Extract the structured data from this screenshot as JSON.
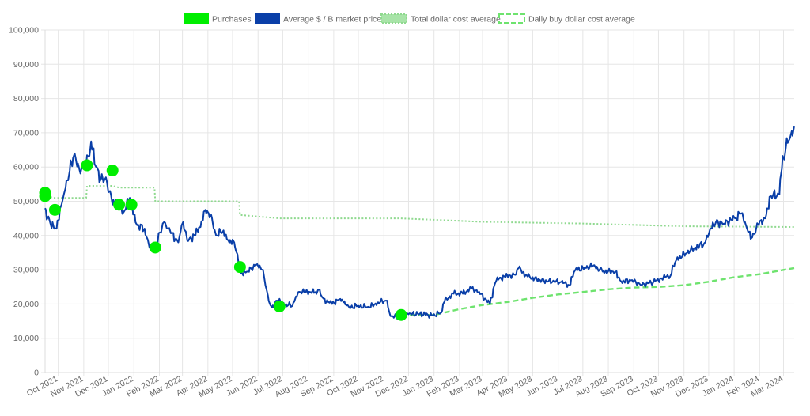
{
  "chart_data": {
    "type": "line",
    "ylim": [
      0,
      100000
    ],
    "xlim": [
      "2021-09-15",
      "2024-03-14"
    ],
    "grid": true,
    "legend_position": "top",
    "y_ticks": [
      {
        "value": 0,
        "label": "0"
      },
      {
        "value": 10000,
        "label": "10,000"
      },
      {
        "value": 20000,
        "label": "20,000"
      },
      {
        "value": 30000,
        "label": "30,000"
      },
      {
        "value": 40000,
        "label": "40,000"
      },
      {
        "value": 50000,
        "label": "50,000"
      },
      {
        "value": 60000,
        "label": "60,000"
      },
      {
        "value": 70000,
        "label": "70,000"
      },
      {
        "value": 80000,
        "label": "80,000"
      },
      {
        "value": 90000,
        "label": "90,000"
      },
      {
        "value": 100000,
        "label": "100,000"
      }
    ],
    "x_ticks": [
      {
        "date": "2021-10-01",
        "label": "Oct 2021"
      },
      {
        "date": "2021-11-01",
        "label": "Nov 2021"
      },
      {
        "date": "2021-12-01",
        "label": "Dec 2021"
      },
      {
        "date": "2022-01-01",
        "label": "Jan 2022"
      },
      {
        "date": "2022-02-01",
        "label": "Feb 2022"
      },
      {
        "date": "2022-03-01",
        "label": "Mar 2022"
      },
      {
        "date": "2022-04-01",
        "label": "Apr 2022"
      },
      {
        "date": "2022-05-01",
        "label": "May 2022"
      },
      {
        "date": "2022-06-01",
        "label": "Jun 2022"
      },
      {
        "date": "2022-07-01",
        "label": "Jul 2022"
      },
      {
        "date": "2022-08-01",
        "label": "Aug 2022"
      },
      {
        "date": "2022-09-01",
        "label": "Sep 2022"
      },
      {
        "date": "2022-10-01",
        "label": "Oct 2022"
      },
      {
        "date": "2022-11-01",
        "label": "Nov 2022"
      },
      {
        "date": "2022-12-01",
        "label": "Dec 2022"
      },
      {
        "date": "2023-01-01",
        "label": "Jan 2023"
      },
      {
        "date": "2023-02-01",
        "label": "Feb 2023"
      },
      {
        "date": "2023-03-01",
        "label": "Mar 2023"
      },
      {
        "date": "2023-04-01",
        "label": "Apr 2023"
      },
      {
        "date": "2023-05-01",
        "label": "May 2023"
      },
      {
        "date": "2023-06-01",
        "label": "Jun 2023"
      },
      {
        "date": "2023-07-01",
        "label": "Jul 2023"
      },
      {
        "date": "2023-08-01",
        "label": "Aug 2023"
      },
      {
        "date": "2023-09-01",
        "label": "Sep 2023"
      },
      {
        "date": "2023-10-01",
        "label": "Oct 2023"
      },
      {
        "date": "2023-11-01",
        "label": "Nov 2023"
      },
      {
        "date": "2023-12-01",
        "label": "Dec 2023"
      },
      {
        "date": "2024-01-01",
        "label": "Jan 2024"
      },
      {
        "date": "2024-02-01",
        "label": "Feb 2024"
      },
      {
        "date": "2024-03-01",
        "label": "Mar 2024"
      }
    ],
    "series": [
      {
        "name": "Purchases",
        "type": "scatter",
        "color": "#00ee00",
        "points": [
          {
            "x": "2021-09-15",
            "y": 52500
          },
          {
            "x": "2021-09-15",
            "y": 51500
          },
          {
            "x": "2021-09-27",
            "y": 47500
          },
          {
            "x": "2021-11-05",
            "y": 60500
          },
          {
            "x": "2021-12-06",
            "y": 59000
          },
          {
            "x": "2021-12-14",
            "y": 49000
          },
          {
            "x": "2021-12-29",
            "y": 49000
          },
          {
            "x": "2022-01-27",
            "y": 36500
          },
          {
            "x": "2022-05-10",
            "y": 30800
          },
          {
            "x": "2022-06-27",
            "y": 19300
          },
          {
            "x": "2022-11-22",
            "y": 16800
          }
        ]
      },
      {
        "name": "Average $ / B market price",
        "type": "line",
        "color": "#0a3fa8",
        "points": [
          {
            "x": "2021-09-15",
            "y": 48000
          },
          {
            "x": "2021-09-22",
            "y": 43000
          },
          {
            "x": "2021-09-29",
            "y": 42000
          },
          {
            "x": "2021-10-05",
            "y": 49000
          },
          {
            "x": "2021-10-10",
            "y": 54000
          },
          {
            "x": "2021-10-15",
            "y": 59000
          },
          {
            "x": "2021-10-21",
            "y": 64000
          },
          {
            "x": "2021-10-27",
            "y": 59000
          },
          {
            "x": "2021-11-01",
            "y": 61000
          },
          {
            "x": "2021-11-07",
            "y": 63000
          },
          {
            "x": "2021-11-10",
            "y": 67500
          },
          {
            "x": "2021-11-16",
            "y": 60000
          },
          {
            "x": "2021-11-22",
            "y": 56500
          },
          {
            "x": "2021-11-28",
            "y": 57000
          },
          {
            "x": "2021-12-03",
            "y": 53000
          },
          {
            "x": "2021-12-06",
            "y": 49000
          },
          {
            "x": "2021-12-12",
            "y": 50000
          },
          {
            "x": "2021-12-20",
            "y": 47000
          },
          {
            "x": "2021-12-27",
            "y": 51000
          },
          {
            "x": "2022-01-05",
            "y": 43000
          },
          {
            "x": "2022-01-14",
            "y": 42000
          },
          {
            "x": "2022-01-22",
            "y": 36000
          },
          {
            "x": "2022-01-27",
            "y": 36500
          },
          {
            "x": "2022-02-07",
            "y": 44000
          },
          {
            "x": "2022-02-12",
            "y": 42000
          },
          {
            "x": "2022-02-24",
            "y": 38000
          },
          {
            "x": "2022-03-02",
            "y": 44000
          },
          {
            "x": "2022-03-07",
            "y": 38500
          },
          {
            "x": "2022-03-16",
            "y": 40000
          },
          {
            "x": "2022-03-23",
            "y": 42500
          },
          {
            "x": "2022-03-29",
            "y": 47500
          },
          {
            "x": "2022-04-05",
            "y": 46000
          },
          {
            "x": "2022-04-11",
            "y": 40000
          },
          {
            "x": "2022-04-20",
            "y": 41500
          },
          {
            "x": "2022-04-26",
            "y": 38500
          },
          {
            "x": "2022-05-03",
            "y": 38000
          },
          {
            "x": "2022-05-07",
            "y": 34500
          },
          {
            "x": "2022-05-11",
            "y": 29000
          },
          {
            "x": "2022-05-20",
            "y": 29500
          },
          {
            "x": "2022-05-30",
            "y": 31500
          },
          {
            "x": "2022-06-07",
            "y": 30000
          },
          {
            "x": "2022-06-13",
            "y": 22500
          },
          {
            "x": "2022-06-18",
            "y": 19000
          },
          {
            "x": "2022-06-25",
            "y": 21000
          },
          {
            "x": "2022-07-05",
            "y": 20000
          },
          {
            "x": "2022-07-13",
            "y": 19500
          },
          {
            "x": "2022-07-20",
            "y": 23500
          },
          {
            "x": "2022-07-29",
            "y": 23500
          },
          {
            "x": "2022-08-10",
            "y": 23500
          },
          {
            "x": "2022-08-15",
            "y": 24200
          },
          {
            "x": "2022-08-20",
            "y": 21500
          },
          {
            "x": "2022-08-30",
            "y": 20000
          },
          {
            "x": "2022-09-09",
            "y": 21500
          },
          {
            "x": "2022-09-13",
            "y": 20500
          },
          {
            "x": "2022-09-20",
            "y": 19000
          },
          {
            "x": "2022-10-01",
            "y": 19500
          },
          {
            "x": "2022-10-15",
            "y": 19000
          },
          {
            "x": "2022-10-25",
            "y": 20500
          },
          {
            "x": "2022-11-05",
            "y": 21000
          },
          {
            "x": "2022-11-09",
            "y": 16500
          },
          {
            "x": "2022-11-21",
            "y": 16000
          },
          {
            "x": "2022-12-01",
            "y": 17000
          },
          {
            "x": "2022-12-15",
            "y": 17200
          },
          {
            "x": "2022-12-31",
            "y": 16600
          },
          {
            "x": "2023-01-10",
            "y": 17500
          },
          {
            "x": "2023-01-14",
            "y": 20800
          },
          {
            "x": "2023-01-25",
            "y": 23000
          },
          {
            "x": "2023-02-05",
            "y": 23000
          },
          {
            "x": "2023-02-16",
            "y": 24500
          },
          {
            "x": "2023-02-25",
            "y": 23500
          },
          {
            "x": "2023-03-10",
            "y": 20000
          },
          {
            "x": "2023-03-18",
            "y": 27000
          },
          {
            "x": "2023-03-28",
            "y": 28000
          },
          {
            "x": "2023-04-10",
            "y": 28500
          },
          {
            "x": "2023-04-14",
            "y": 30500
          },
          {
            "x": "2023-04-25",
            "y": 28000
          },
          {
            "x": "2023-05-10",
            "y": 27000
          },
          {
            "x": "2023-05-25",
            "y": 26500
          },
          {
            "x": "2023-06-05",
            "y": 26500
          },
          {
            "x": "2023-06-15",
            "y": 25500
          },
          {
            "x": "2023-06-22",
            "y": 30000
          },
          {
            "x": "2023-07-05",
            "y": 30500
          },
          {
            "x": "2023-07-14",
            "y": 31300
          },
          {
            "x": "2023-07-25",
            "y": 29500
          },
          {
            "x": "2023-08-10",
            "y": 29500
          },
          {
            "x": "2023-08-17",
            "y": 26500
          },
          {
            "x": "2023-08-30",
            "y": 27000
          },
          {
            "x": "2023-09-11",
            "y": 25500
          },
          {
            "x": "2023-09-25",
            "y": 26500
          },
          {
            "x": "2023-10-05",
            "y": 27500
          },
          {
            "x": "2023-10-16",
            "y": 28500
          },
          {
            "x": "2023-10-23",
            "y": 33000
          },
          {
            "x": "2023-11-05",
            "y": 35000
          },
          {
            "x": "2023-11-15",
            "y": 36500
          },
          {
            "x": "2023-11-25",
            "y": 37500
          },
          {
            "x": "2023-12-05",
            "y": 42000
          },
          {
            "x": "2023-12-10",
            "y": 44000
          },
          {
            "x": "2023-12-20",
            "y": 43500
          },
          {
            "x": "2024-01-02",
            "y": 45000
          },
          {
            "x": "2024-01-10",
            "y": 46500
          },
          {
            "x": "2024-01-16",
            "y": 42500
          },
          {
            "x": "2024-01-23",
            "y": 39500
          },
          {
            "x": "2024-01-31",
            "y": 43000
          },
          {
            "x": "2024-02-08",
            "y": 45000
          },
          {
            "x": "2024-02-15",
            "y": 51500
          },
          {
            "x": "2024-02-25",
            "y": 52000
          },
          {
            "x": "2024-02-28",
            "y": 59500
          },
          {
            "x": "2024-03-04",
            "y": 66000
          },
          {
            "x": "2024-03-08",
            "y": 68000
          },
          {
            "x": "2024-03-11",
            "y": 70500
          },
          {
            "x": "2024-03-14",
            "y": 72000
          }
        ]
      },
      {
        "name": "Total dollar cost average",
        "type": "line",
        "style": "dotted",
        "color": "#8fd98f",
        "points": [
          {
            "x": "2021-09-15",
            "y": 52000
          },
          {
            "x": "2021-09-15",
            "y": 51500
          },
          {
            "x": "2021-09-27",
            "y": 51000
          },
          {
            "x": "2021-11-04",
            "y": 51000
          },
          {
            "x": "2021-11-05",
            "y": 54500
          },
          {
            "x": "2021-12-06",
            "y": 54500
          },
          {
            "x": "2021-12-14",
            "y": 54000
          },
          {
            "x": "2022-01-26",
            "y": 54000
          },
          {
            "x": "2022-01-27",
            "y": 50000
          },
          {
            "x": "2022-05-09",
            "y": 50000
          },
          {
            "x": "2022-05-10",
            "y": 46000
          },
          {
            "x": "2022-06-27",
            "y": 45000
          },
          {
            "x": "2022-11-21",
            "y": 45000
          },
          {
            "x": "2023-03-01",
            "y": 44000
          },
          {
            "x": "2023-07-01",
            "y": 43500
          },
          {
            "x": "2023-11-01",
            "y": 42700
          },
          {
            "x": "2024-03-14",
            "y": 42500
          }
        ]
      },
      {
        "name": "Daily buy dollar cost average",
        "type": "line",
        "style": "dashed",
        "color": "#6ee36e",
        "points": [
          {
            "x": "2022-11-22",
            "y": 16800
          },
          {
            "x": "2023-01-01",
            "y": 16800
          },
          {
            "x": "2023-02-01",
            "y": 18500
          },
          {
            "x": "2023-03-01",
            "y": 19700
          },
          {
            "x": "2023-04-01",
            "y": 20600
          },
          {
            "x": "2023-05-01",
            "y": 21800
          },
          {
            "x": "2023-06-01",
            "y": 22800
          },
          {
            "x": "2023-07-01",
            "y": 23500
          },
          {
            "x": "2023-08-01",
            "y": 24300
          },
          {
            "x": "2023-09-01",
            "y": 24800
          },
          {
            "x": "2023-10-01",
            "y": 25000
          },
          {
            "x": "2023-11-01",
            "y": 25500
          },
          {
            "x": "2023-12-01",
            "y": 26500
          },
          {
            "x": "2024-01-01",
            "y": 27800
          },
          {
            "x": "2024-02-01",
            "y": 28700
          },
          {
            "x": "2024-03-14",
            "y": 30500
          }
        ]
      }
    ]
  }
}
